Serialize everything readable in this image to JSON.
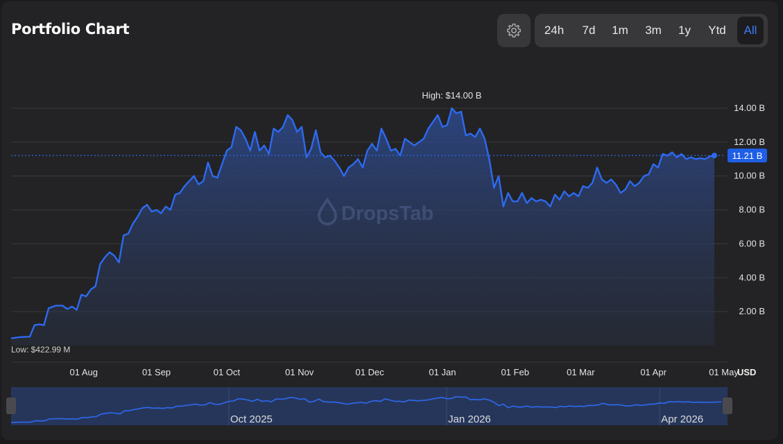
{
  "header": {
    "title": "Portfolio Chart",
    "settings_icon": "gear-icon",
    "ranges": [
      "24h",
      "7d",
      "1m",
      "3m",
      "1y",
      "Ytd",
      "All"
    ],
    "active_range": "All"
  },
  "colors": {
    "line": "#2d6af0",
    "accent": "#3d7bf5",
    "grid": "#3a3a3d",
    "area_top": "#2d4a8e",
    "navigator_bg": "#26365b"
  },
  "chart_data": {
    "type": "area",
    "currency_label": "USD",
    "watermark": "DropsTab",
    "high_label": "High: $14.00 B",
    "low_label": "Low: $422.99 M",
    "current_value_label": "11.21 B",
    "current_value": 11.21,
    "unit": "B",
    "ylim": [
      0,
      15.35
    ],
    "y_ticks": [
      2,
      4,
      6,
      8,
      10,
      12,
      14
    ],
    "y_tick_labels": [
      "2.00 B",
      "4.00 B",
      "6.00 B",
      "8.00 B",
      "10.00 B",
      "12.00 B",
      "14.00 B"
    ],
    "x_ticks": [
      "2025-08-01",
      "2025-09-01",
      "2025-10-01",
      "2025-11-01",
      "2025-12-01",
      "2026-01-01",
      "2026-02-01",
      "2026-03-01",
      "2026-04-01",
      "2026-05-01"
    ],
    "x_tick_labels": [
      "01 Aug",
      "01 Sep",
      "01 Oct",
      "01 Nov",
      "01 Dec",
      "01 Jan",
      "01 Feb",
      "01 Mar",
      "01 Apr",
      "01 May"
    ],
    "grid": true,
    "series": [
      {
        "points": [
          [
            "2025-07-01",
            0.42
          ],
          [
            "2025-07-05",
            0.5
          ],
          [
            "2025-07-09",
            0.52
          ],
          [
            "2025-07-11",
            1.2
          ],
          [
            "2025-07-13",
            1.25
          ],
          [
            "2025-07-15",
            1.2
          ],
          [
            "2025-07-17",
            2.2
          ],
          [
            "2025-07-20",
            2.35
          ],
          [
            "2025-07-23",
            2.35
          ],
          [
            "2025-07-25",
            2.15
          ],
          [
            "2025-07-27",
            2.3
          ],
          [
            "2025-07-29",
            2.1
          ],
          [
            "2025-07-31",
            3.0
          ],
          [
            "2025-08-02",
            2.9
          ],
          [
            "2025-08-04",
            3.3
          ],
          [
            "2025-08-06",
            3.5
          ],
          [
            "2025-08-08",
            4.8
          ],
          [
            "2025-08-10",
            5.2
          ],
          [
            "2025-08-12",
            5.5
          ],
          [
            "2025-08-14",
            5.3
          ],
          [
            "2025-08-16",
            4.9
          ],
          [
            "2025-08-18",
            6.5
          ],
          [
            "2025-08-20",
            6.6
          ],
          [
            "2025-08-22",
            7.2
          ],
          [
            "2025-08-24",
            7.6
          ],
          [
            "2025-08-26",
            8.1
          ],
          [
            "2025-08-28",
            8.3
          ],
          [
            "2025-08-30",
            7.9
          ],
          [
            "2025-09-01",
            8.0
          ],
          [
            "2025-09-03",
            7.8
          ],
          [
            "2025-09-05",
            8.2
          ],
          [
            "2025-09-07",
            8.0
          ],
          [
            "2025-09-09",
            8.9
          ],
          [
            "2025-09-11",
            9.0
          ],
          [
            "2025-09-13",
            9.4
          ],
          [
            "2025-09-15",
            9.7
          ],
          [
            "2025-09-17",
            10.0
          ],
          [
            "2025-09-19",
            9.5
          ],
          [
            "2025-09-21",
            9.7
          ],
          [
            "2025-09-23",
            10.8
          ],
          [
            "2025-09-25",
            10.0
          ],
          [
            "2025-09-27",
            9.9
          ],
          [
            "2025-09-29",
            10.7
          ],
          [
            "2025-10-01",
            11.5
          ],
          [
            "2025-10-03",
            11.7
          ],
          [
            "2025-10-05",
            12.9
          ],
          [
            "2025-10-07",
            12.7
          ],
          [
            "2025-10-09",
            12.2
          ],
          [
            "2025-10-11",
            11.5
          ],
          [
            "2025-10-13",
            12.6
          ],
          [
            "2025-10-15",
            11.5
          ],
          [
            "2025-10-17",
            11.8
          ],
          [
            "2025-10-19",
            11.3
          ],
          [
            "2025-10-21",
            12.8
          ],
          [
            "2025-10-23",
            12.6
          ],
          [
            "2025-10-25",
            12.9
          ],
          [
            "2025-10-27",
            13.6
          ],
          [
            "2025-10-29",
            13.3
          ],
          [
            "2025-10-31",
            12.6
          ],
          [
            "2025-11-02",
            12.9
          ],
          [
            "2025-11-04",
            11.1
          ],
          [
            "2025-11-06",
            11.6
          ],
          [
            "2025-11-08",
            12.7
          ],
          [
            "2025-11-10",
            11.4
          ],
          [
            "2025-11-12",
            11.1
          ],
          [
            "2025-11-14",
            11.2
          ],
          [
            "2025-11-16",
            10.9
          ],
          [
            "2025-11-18",
            10.5
          ],
          [
            "2025-11-20",
            10.0
          ],
          [
            "2025-11-22",
            10.5
          ],
          [
            "2025-11-24",
            10.7
          ],
          [
            "2025-11-26",
            11.0
          ],
          [
            "2025-11-28",
            10.5
          ],
          [
            "2025-11-30",
            11.5
          ],
          [
            "2025-12-02",
            11.9
          ],
          [
            "2025-12-04",
            11.5
          ],
          [
            "2025-12-06",
            12.8
          ],
          [
            "2025-12-08",
            12.2
          ],
          [
            "2025-12-10",
            11.5
          ],
          [
            "2025-12-12",
            11.6
          ],
          [
            "2025-12-14",
            11.2
          ],
          [
            "2025-12-16",
            12.2
          ],
          [
            "2025-12-18",
            12.0
          ],
          [
            "2025-12-20",
            11.8
          ],
          [
            "2025-12-22",
            12.0
          ],
          [
            "2025-12-24",
            12.2
          ],
          [
            "2025-12-26",
            12.8
          ],
          [
            "2025-12-28",
            13.2
          ],
          [
            "2025-12-30",
            13.6
          ],
          [
            "2026-01-01",
            12.9
          ],
          [
            "2026-01-03",
            13.0
          ],
          [
            "2026-01-05",
            14.0
          ],
          [
            "2026-01-07",
            13.7
          ],
          [
            "2026-01-09",
            13.8
          ],
          [
            "2026-01-11",
            12.4
          ],
          [
            "2026-01-13",
            12.5
          ],
          [
            "2026-01-15",
            12.3
          ],
          [
            "2026-01-17",
            12.8
          ],
          [
            "2026-01-19",
            12.2
          ],
          [
            "2026-01-21",
            11.0
          ],
          [
            "2026-01-23",
            9.3
          ],
          [
            "2026-01-25",
            10.0
          ],
          [
            "2026-01-27",
            8.2
          ],
          [
            "2026-01-29",
            9.0
          ],
          [
            "2026-01-31",
            8.5
          ],
          [
            "2026-02-02",
            8.5
          ],
          [
            "2026-02-04",
            9.0
          ],
          [
            "2026-02-06",
            8.4
          ],
          [
            "2026-02-08",
            8.7
          ],
          [
            "2026-02-10",
            8.5
          ],
          [
            "2026-02-12",
            8.6
          ],
          [
            "2026-02-14",
            8.5
          ],
          [
            "2026-02-16",
            8.2
          ],
          [
            "2026-02-18",
            8.9
          ],
          [
            "2026-02-20",
            8.6
          ],
          [
            "2026-02-22",
            9.1
          ],
          [
            "2026-02-24",
            8.8
          ],
          [
            "2026-02-26",
            9.0
          ],
          [
            "2026-02-28",
            8.8
          ],
          [
            "2026-03-02",
            9.4
          ],
          [
            "2026-03-04",
            9.3
          ],
          [
            "2026-03-06",
            9.6
          ],
          [
            "2026-03-08",
            10.5
          ],
          [
            "2026-03-10",
            9.8
          ],
          [
            "2026-03-12",
            9.6
          ],
          [
            "2026-03-14",
            9.8
          ],
          [
            "2026-03-16",
            9.5
          ],
          [
            "2026-03-18",
            9.0
          ],
          [
            "2026-03-20",
            9.2
          ],
          [
            "2026-03-22",
            9.7
          ],
          [
            "2026-03-24",
            9.4
          ],
          [
            "2026-03-26",
            9.6
          ],
          [
            "2026-03-28",
            10.0
          ],
          [
            "2026-03-30",
            10.1
          ],
          [
            "2026-04-01",
            10.7
          ],
          [
            "2026-04-03",
            10.5
          ],
          [
            "2026-04-05",
            11.3
          ],
          [
            "2026-04-07",
            11.2
          ],
          [
            "2026-04-09",
            11.4
          ],
          [
            "2026-04-11",
            11.1
          ],
          [
            "2026-04-13",
            11.3
          ],
          [
            "2026-04-15",
            11.0
          ],
          [
            "2026-04-17",
            11.1
          ],
          [
            "2026-04-19",
            11.0
          ],
          [
            "2026-04-21",
            11.05
          ],
          [
            "2026-04-23",
            11.0
          ],
          [
            "2026-04-25",
            11.15
          ],
          [
            "2026-04-27",
            11.21
          ]
        ]
      }
    ],
    "navigator": {
      "labels": [
        "Oct 2025",
        "Jan 2026",
        "Apr 2026"
      ],
      "label_dates": [
        "2025-10-01",
        "2026-01-01",
        "2026-04-01"
      ]
    }
  }
}
